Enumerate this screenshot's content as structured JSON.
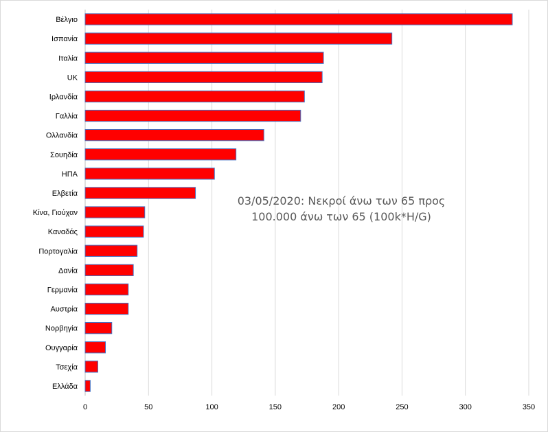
{
  "chart_data": {
    "type": "bar",
    "orientation": "horizontal",
    "title_lines": [
      "03/05/2020: Νεκροί άνω των 65 προς",
      "100.000 άνω των 65 (100k*H/G)"
    ],
    "categories": [
      "Βέλγιο",
      "Ισπανία",
      "Ιταλία",
      "UK",
      "Ιρλανδία",
      "Γαλλία",
      "Ολλανδία",
      "Σουηδία",
      "ΗΠΑ",
      "Ελβετία",
      "Κίνα, Γιούχαν",
      "Καναδάς",
      "Πορτογαλία",
      "Δανία",
      "Γερμανία",
      "Αυστρία",
      "Νορβηγία",
      "Ουγγαρία",
      "Τσεχία",
      "Ελλάδα"
    ],
    "values": [
      337,
      242,
      188,
      187,
      173,
      170,
      141,
      119,
      102,
      87,
      47,
      46,
      41,
      38,
      34,
      34,
      21,
      16,
      10,
      4
    ],
    "xlim": [
      0,
      350
    ],
    "xticks": [
      "0",
      "50",
      "100",
      "150",
      "200",
      "250",
      "300",
      "350"
    ],
    "grid": "vertical",
    "bar_color": "#ff0000",
    "bar_edge_color": "#4472c4"
  }
}
